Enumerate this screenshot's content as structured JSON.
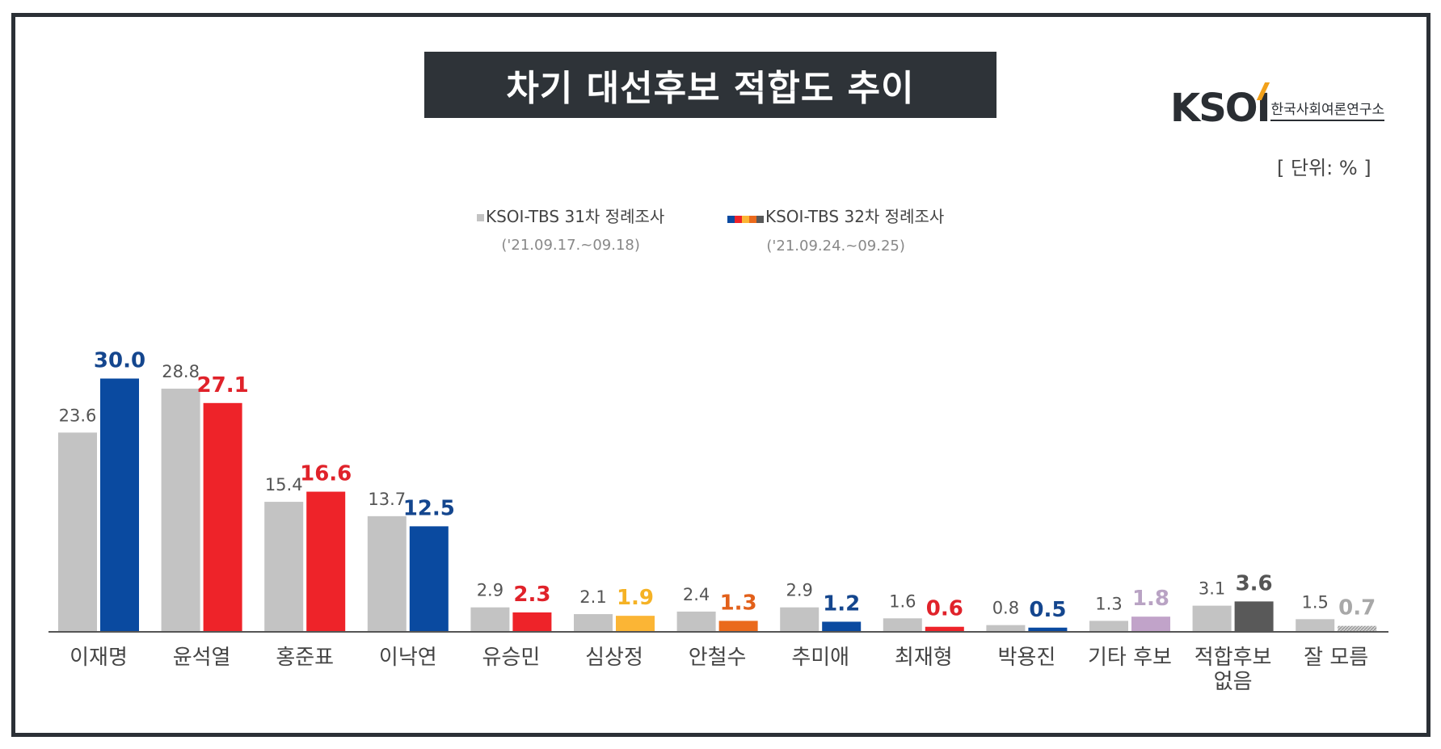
{
  "title": "차기 대선후보 적합도 추이",
  "logo": {
    "mark": "KSOI",
    "subtitle": "한국사회여론연구소"
  },
  "unit_label": "[ 단위: % ]",
  "legend": [
    {
      "label": "KSOI-TBS 31차 정례조사",
      "date": "('21.09.17.~09.18)"
    },
    {
      "label": "KSOI-TBS 32차 정례조사",
      "date": "('21.09.24.~09.25)"
    }
  ],
  "chart_data": {
    "type": "bar",
    "title": "차기 대선후보 적합도 추이",
    "xlabel": "",
    "ylabel": "",
    "ylim": [
      0,
      30
    ],
    "categories": [
      "이재명",
      "윤석열",
      "홍준표",
      "이낙연",
      "유승민",
      "심상정",
      "안철수",
      "추미애",
      "최재형",
      "박용진",
      "기타 후보",
      "적합후보\n없음",
      "잘 모름"
    ],
    "series": [
      {
        "name": "KSOI-TBS 31차 정례조사",
        "values": [
          23.6,
          28.8,
          15.4,
          13.7,
          2.9,
          2.1,
          2.4,
          2.9,
          1.6,
          0.8,
          1.3,
          3.1,
          1.5
        ],
        "color": "#c3c3c3"
      },
      {
        "name": "KSOI-TBS 32차 정례조사",
        "values": [
          30.0,
          27.1,
          16.6,
          12.5,
          2.3,
          1.9,
          1.3,
          1.2,
          0.6,
          0.5,
          1.8,
          3.6,
          0.7
        ],
        "colors": [
          "#0a4aa0",
          "#ee2329",
          "#ee2329",
          "#0a4aa0",
          "#ee2329",
          "#fbb535",
          "#ea6a1c",
          "#0a4aa0",
          "#ee2329",
          "#0a4aa0",
          "#c1a3c9",
          "#595959",
          "#b8b8b8"
        ],
        "label_colors": [
          "#14468e",
          "#e0222a",
          "#e0222a",
          "#14468e",
          "#e0222a",
          "#f5b225",
          "#e2601a",
          "#14468e",
          "#e0222a",
          "#14468e",
          "#b9a3c4",
          "#555555",
          "#a8a8a8"
        ]
      }
    ]
  }
}
